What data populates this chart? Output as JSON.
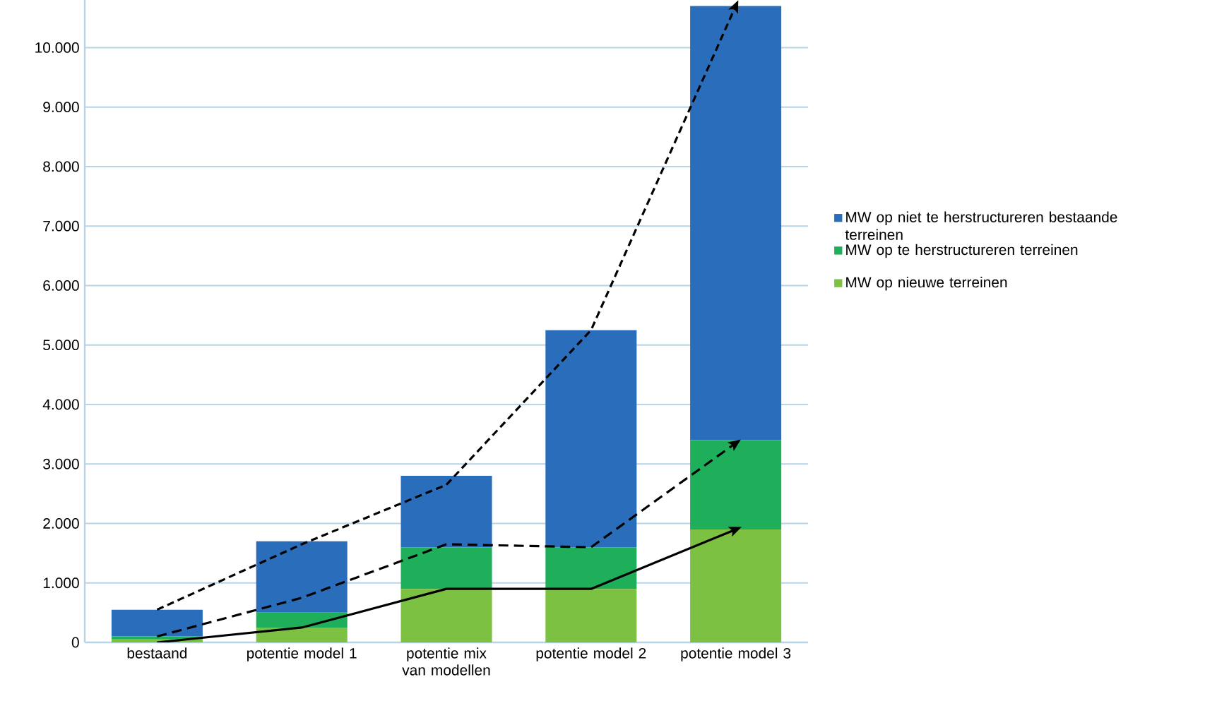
{
  "chart_data": {
    "type": "bar",
    "stacked": true,
    "categories": [
      "bestaand",
      "potentie model 1",
      "potentie mix van modellen",
      "potentie model 2",
      "potentie model 3"
    ],
    "series": [
      {
        "name": "MW op nieuwe terreinen",
        "color": "#7dc142",
        "values": [
          50,
          250,
          900,
          900,
          1900
        ]
      },
      {
        "name": "MW op te herstructureren terreinen",
        "color": "#1fae5a",
        "values": [
          50,
          250,
          700,
          700,
          1500
        ]
      },
      {
        "name": "MW op niet te herstructureren bestaande terreinen",
        "color": "#2a6ebb",
        "values": [
          450,
          1200,
          1200,
          3650,
          7300
        ]
      },
      {
        "type": "line",
        "color": "#000000",
        "line_style": "solid",
        "values": [
          0,
          250,
          900,
          900,
          1900
        ]
      },
      {
        "type": "line",
        "color": "#000000",
        "line_style": "dashed",
        "values": [
          100,
          750,
          1650,
          1600,
          3350
        ]
      },
      {
        "type": "line",
        "color": "#000000",
        "line_style": "dashed",
        "values": [
          550,
          1650,
          2650,
          5250,
          10700
        ]
      }
    ],
    "ylim": [
      0,
      10800
    ],
    "yticks": [
      {
        "value": 0,
        "label": "0"
      },
      {
        "value": 1000,
        "label": "1.000"
      },
      {
        "value": 2000,
        "label": "2.000"
      },
      {
        "value": 3000,
        "label": "3.000"
      },
      {
        "value": 4000,
        "label": "4.000"
      },
      {
        "value": 5000,
        "label": "5.000"
      },
      {
        "value": 6000,
        "label": "6.000"
      },
      {
        "value": 7000,
        "label": "7.000"
      },
      {
        "value": 8000,
        "label": "8.000"
      },
      {
        "value": 9000,
        "label": "9.000"
      },
      {
        "value": 10000,
        "label": "10.000"
      }
    ],
    "grid": "y",
    "legend": "right",
    "marker": "none"
  }
}
